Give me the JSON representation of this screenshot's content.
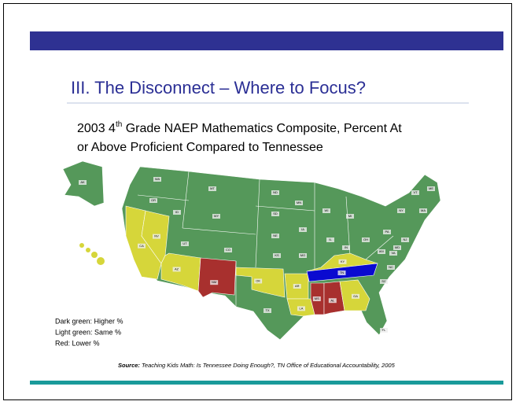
{
  "header": {
    "title": "III. The Disconnect – Where to Focus?"
  },
  "subtitle": {
    "line1": [
      "2003 4",
      "th",
      " Grade NAEP Mathematics Composite, Percent At"
    ],
    "line2": "or Above Proficient Compared to Tennessee"
  },
  "map": {
    "base_color": "#55985a",
    "regions": [
      {
        "label": "CA",
        "color": "#d6d63a"
      },
      {
        "label": "NV",
        "color": "#d6d63a"
      },
      {
        "label": "AZ",
        "color": "#d6d63a"
      },
      {
        "label": "NM",
        "color": "#a8302e"
      },
      {
        "label": "OK",
        "color": "#d6d63a"
      },
      {
        "label": "AR",
        "color": "#d6d63a"
      },
      {
        "label": "LA",
        "color": "#d6d63a"
      },
      {
        "label": "MS",
        "color": "#a8302e"
      },
      {
        "label": "AL",
        "color": "#a8302e"
      },
      {
        "label": "GA",
        "color": "#d6d63a"
      },
      {
        "label": "KY",
        "color": "#d6d63a"
      },
      {
        "label": "TN",
        "color": "#0a0ad0"
      }
    ],
    "hawaii_color": "#d6d63a",
    "labels": [
      "AK",
      "WA",
      "OR",
      "ID",
      "MT",
      "WY",
      "UT",
      "CO",
      "ND",
      "SD",
      "NE",
      "KS",
      "MN",
      "IA",
      "MO",
      "WI",
      "IL",
      "MI",
      "IN",
      "OH",
      "PA",
      "NY",
      "WV",
      "VA",
      "NC",
      "SC",
      "FL",
      "TX",
      "ME",
      "VT",
      "MA",
      "NJ",
      "MD"
    ]
  },
  "legend": [
    "Dark green: Higher %",
    "Light green: Same %",
    "Red: Lower %"
  ],
  "source": {
    "label": "Source:",
    "text": " Teaching Kids Math: Is Tennessee Doing Enough?, TN Office of Educational Accountability, 2005"
  }
}
